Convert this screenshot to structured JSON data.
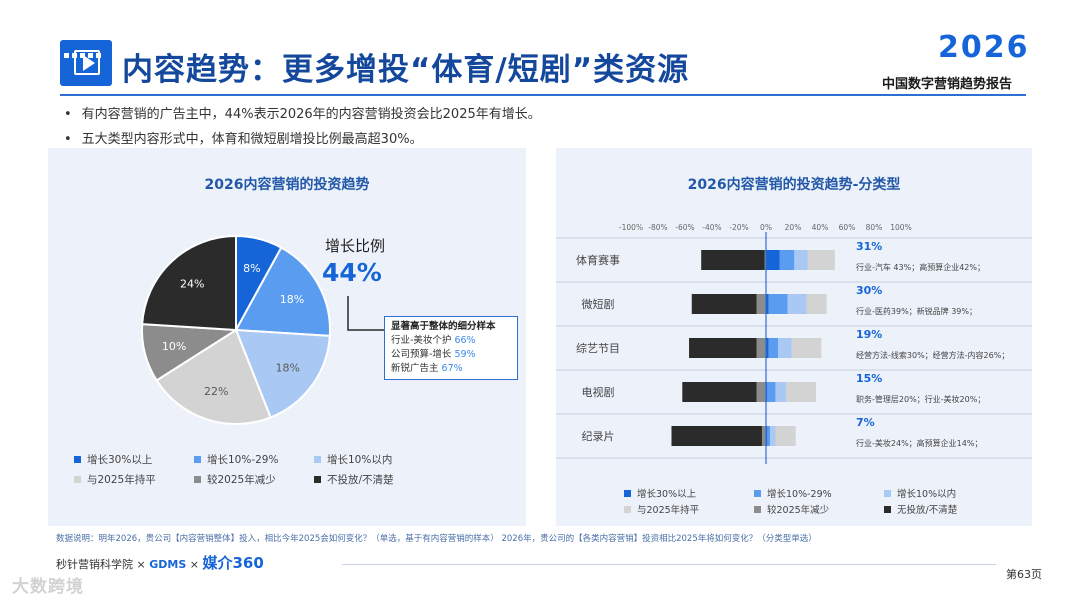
{
  "header": {
    "title": "内容趋势：更多增投“体育/短剧”类资源",
    "brand_year": "2026",
    "brand_subtitle": "中国数字营销趋势报告"
  },
  "bullets": [
    "有内容营销的广告主中，44%表示2026年的内容营销投资会比2025年有增长。",
    "五大类型内容形式中，体育和微短剧增投比例最高超30%。"
  ],
  "colors": {
    "dark_blue": "#1565d8",
    "mid_blue": "#5a9cf0",
    "light_blue": "#a9c9f4",
    "pale_gray": "#d3d3d3",
    "mid_gray": "#8c8c8c",
    "black": "#2b2b2b"
  },
  "chart_data": [
    {
      "type": "pie",
      "title": "2026内容营销的投资趋势",
      "labels": [
        "增长30%以上",
        "增长10%-29%",
        "增长10%以内",
        "与2025年持平",
        "较2025年减少",
        "不投放/不清楚"
      ],
      "values": [
        8,
        18,
        18,
        22,
        10,
        24
      ],
      "value_labels": [
        "8%",
        "18%",
        "18%",
        "22%",
        "10%",
        "24%"
      ],
      "legend_position": "bottom",
      "annotation": {
        "label": "增长比例",
        "value": "44%",
        "box_title": "显著高于整体的细分样本",
        "rows": [
          {
            "text": "行业-美妆个护",
            "value": "66%"
          },
          {
            "text": "公司预算-增长",
            "value": "59%"
          },
          {
            "text": "新锐广告主",
            "value": "67%"
          }
        ]
      }
    },
    {
      "type": "bar",
      "orientation": "horizontal",
      "stacked": true,
      "diverging": true,
      "title": "2026内容营销的投资趋势-分类型",
      "x_ticks": [
        "-100%",
        "-80%",
        "-60%",
        "-40%",
        "-20%",
        "0%",
        "20%",
        "40%",
        "60%",
        "80%",
        "100%"
      ],
      "xlim": [
        -100,
        100
      ],
      "categories": [
        "体育赛事",
        "微短剧",
        "综艺节目",
        "电视剧",
        "纪录片"
      ],
      "negative_series": [
        {
          "name": "无投放/不清楚",
          "values": [
            47,
            48,
            50,
            55,
            67
          ]
        },
        {
          "name": "较2025年减少",
          "values": [
            1,
            7,
            7,
            7,
            3
          ]
        }
      ],
      "positive_series": [
        {
          "name": "增长30%以上",
          "values": [
            10,
            2,
            2,
            1,
            1
          ]
        },
        {
          "name": "增长10%-29%",
          "values": [
            11,
            14,
            7,
            6,
            2
          ]
        },
        {
          "name": "增长10%以内",
          "values": [
            10,
            14,
            10,
            8,
            4
          ]
        },
        {
          "name": "与2025年持平",
          "values": [
            20,
            15,
            22,
            22,
            15
          ]
        }
      ],
      "growth_labels": [
        "31%",
        "30%",
        "19%",
        "15%",
        "7%"
      ],
      "segment_notes": [
        "行业-汽车 43%；高预算企业42%；",
        "行业-医药39%；新锐品牌 39%；",
        "经营方法-线索30%；经营方法-内容26%；",
        "职务-管理层20%；行业-美妆20%；",
        "行业-美妆24%；高预算企业14%；"
      ],
      "legend": [
        "增长30%以上",
        "增长10%-29%",
        "增长10%以内",
        "与2025年持平",
        "较2025年减少",
        "无投放/不清楚"
      ],
      "legend_position": "bottom"
    }
  ],
  "footer": {
    "source": "数据说明：明年2026，贵公司【内容营销整体】投入，相比今年2025会如何变化？（单选，基于有内容营销的样本） 2026年，贵公司的【各类内容营销】投资相比2025年将如何变化？（分类型单选）",
    "logo1": "秒针营销科学院",
    "times1": "×",
    "logo2": "GDMS",
    "times2": "×",
    "logo3": "媒介360",
    "page": "第63页",
    "watermark": "大数跨境"
  }
}
